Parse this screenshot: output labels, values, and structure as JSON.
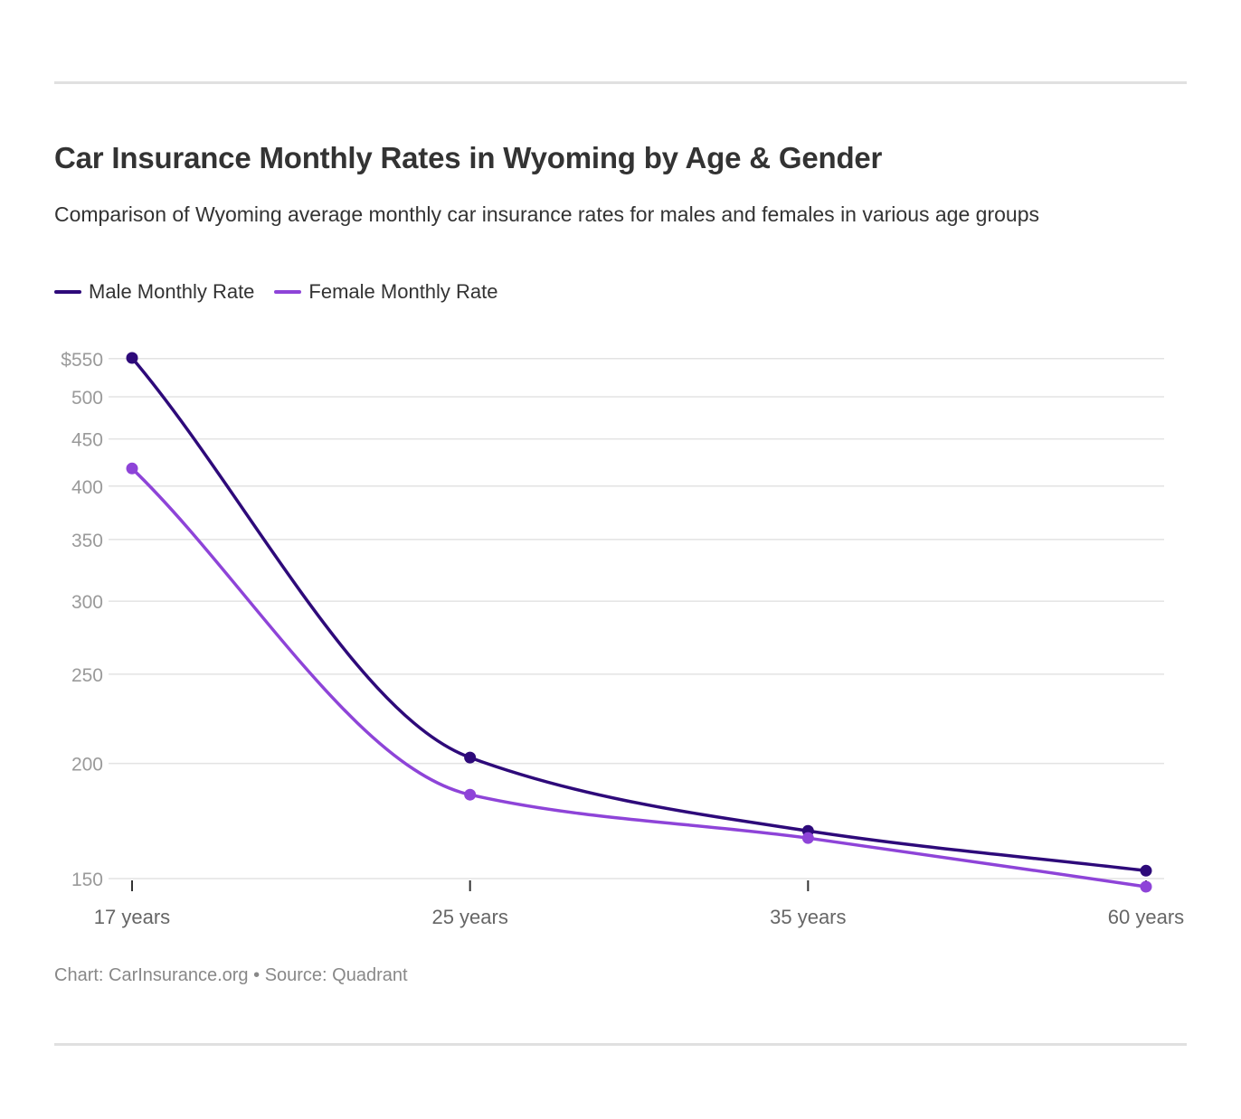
{
  "title": "Car Insurance Monthly Rates in Wyoming by Age & Gender",
  "subtitle": "Comparison of Wyoming average monthly car insurance rates for males and females in various age groups",
  "footer": {
    "credit": "Chart: CarInsurance.org",
    "separator": "•",
    "source": "Source: Quadrant"
  },
  "legend": [
    {
      "label": "Male Monthly Rate",
      "color": "#2e0a7a"
    },
    {
      "label": "Female Monthly Rate",
      "color": "#8e44d8"
    }
  ],
  "chart_data": {
    "type": "line",
    "categories": [
      "17 years",
      "25 years",
      "35 years",
      "60 years"
    ],
    "series": [
      {
        "name": "Male Monthly Rate",
        "color": "#2e0a7a",
        "values": [
          551,
          203,
          169,
          153
        ]
      },
      {
        "name": "Female Monthly Rate",
        "color": "#8e44d8",
        "values": [
          418,
          185,
          166,
          147
        ]
      }
    ],
    "y_ticks": [
      150,
      200,
      250,
      300,
      350,
      400,
      450,
      500,
      550
    ],
    "y_tick_labels": [
      "150",
      "200",
      "250",
      "300",
      "350",
      "400",
      "450",
      "500",
      "$550"
    ],
    "ylim": [
      148,
      551
    ],
    "y_scale": "log",
    "grid": true,
    "legend_position": "top-left",
    "curve": "smooth"
  }
}
